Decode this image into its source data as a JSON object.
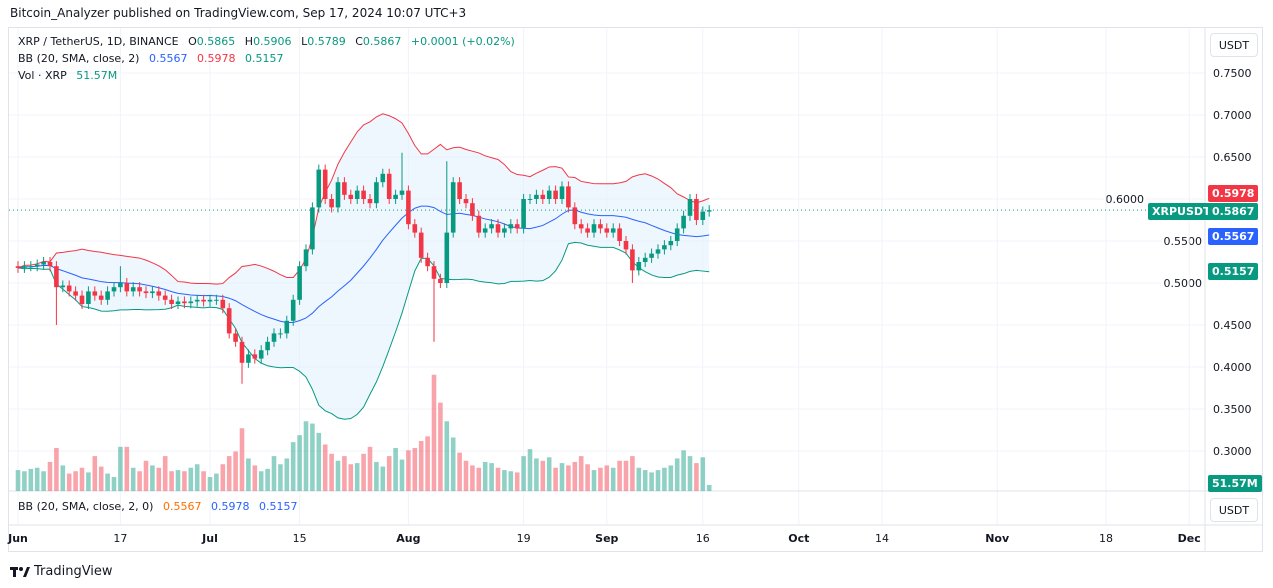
{
  "header": {
    "published": "Bitcoin_Analyzer published on TradingView.com, Sep 17, 2024 10:07 UTC+3"
  },
  "legend": {
    "symbol": "XRP / TetherUS, 1D, BINANCE",
    "o_label": "O",
    "o": "0.5865",
    "h_label": "H",
    "h": "0.5906",
    "l_label": "L",
    "l": "0.5789",
    "c_label": "C",
    "c": "0.5867",
    "change": "+0.0001 (+0.02%)",
    "bb": "BB (20, SMA, close, 2)",
    "bb_basis": "0.5567",
    "bb_upper": "0.5978",
    "bb_lower": "0.5157",
    "vol": "Vol · XRP",
    "vol_value": "51.57M"
  },
  "lower_pane": {
    "label": "BB (20, SMA, close, 2, 0)",
    "v1": "0.5567",
    "v2": "0.5978",
    "v3": "0.5157",
    "unit": "USDT"
  },
  "price_axis": {
    "unit": "USDT",
    "ticks": [
      "0.7500",
      "0.7000",
      "0.6500",
      "0.6000",
      "0.5500",
      "0.5000",
      "0.4500",
      "0.4000",
      "0.3500",
      "0.3000"
    ],
    "tags": {
      "symbol": "XRPUSDT",
      "upper": "0.5978",
      "last": "0.5867",
      "basis": "0.5567",
      "lower": "0.5157",
      "volume": "51.57M"
    }
  },
  "time_axis": {
    "labels": [
      "Jun",
      "17",
      "Jul",
      "15",
      "Aug",
      "19",
      "Sep",
      "16",
      "Oct",
      "14",
      "Nov",
      "18",
      "Dec"
    ]
  },
  "colors": {
    "up": "#089981",
    "down": "#f23645",
    "basis": "#2962ff",
    "upper": "#f23645",
    "lower": "#089981",
    "band_fill": "#e3f2fd"
  },
  "chart_data": {
    "type": "candlestick",
    "title": "XRP / TetherUS, 1D, BINANCE",
    "start_date": "2024-06-01",
    "end_date": "2024-09-17",
    "ylim": [
      0.28,
      0.78
    ],
    "grid": true,
    "closes": [
      0.518,
      0.52,
      0.52,
      0.522,
      0.525,
      0.52,
      0.495,
      0.497,
      0.49,
      0.485,
      0.475,
      0.49,
      0.485,
      0.48,
      0.49,
      0.495,
      0.5,
      0.49,
      0.495,
      0.49,
      0.488,
      0.49,
      0.485,
      0.48,
      0.475,
      0.478,
      0.476,
      0.478,
      0.48,
      0.478,
      0.48,
      0.48,
      0.47,
      0.44,
      0.43,
      0.405,
      0.415,
      0.41,
      0.42,
      0.43,
      0.44,
      0.44,
      0.455,
      0.48,
      0.52,
      0.54,
      0.59,
      0.635,
      0.6,
      0.59,
      0.62,
      0.605,
      0.6,
      0.61,
      0.6,
      0.595,
      0.62,
      0.63,
      0.6,
      0.605,
      0.61,
      0.57,
      0.56,
      0.53,
      0.52,
      0.505,
      0.5,
      0.56,
      0.62,
      0.6,
      0.595,
      0.58,
      0.56,
      0.565,
      0.57,
      0.56,
      0.565,
      0.57,
      0.565,
      0.6,
      0.6,
      0.605,
      0.6,
      0.61,
      0.6,
      0.615,
      0.59,
      0.57,
      0.565,
      0.56,
      0.57,
      0.565,
      0.56,
      0.565,
      0.55,
      0.54,
      0.515,
      0.525,
      0.53,
      0.535,
      0.54,
      0.545,
      0.55,
      0.565,
      0.58,
      0.6,
      0.575,
      0.585,
      0.5867
    ],
    "wick_extremes": [
      {
        "date": "2024-06-07",
        "low": 0.45
      },
      {
        "date": "2024-06-17",
        "high": 0.52
      },
      {
        "date": "2024-07-06",
        "low": 0.38
      },
      {
        "date": "2024-07-31",
        "high": 0.655
      },
      {
        "date": "2024-08-05",
        "low": 0.43
      },
      {
        "date": "2024-08-07",
        "high": 0.645
      },
      {
        "date": "2024-09-05",
        "low": 0.5
      }
    ],
    "volume_millions": [
      180,
      170,
      190,
      200,
      170,
      250,
      370,
      220,
      150,
      170,
      200,
      160,
      300,
      210,
      150,
      120,
      380,
      380,
      200,
      170,
      260,
      220,
      200,
      300,
      170,
      180,
      170,
      200,
      230,
      170,
      120,
      150,
      230,
      300,
      340,
      540,
      280,
      220,
      170,
      190,
      300,
      230,
      280,
      420,
      480,
      600,
      580,
      500,
      400,
      320,
      260,
      300,
      230,
      240,
      320,
      380,
      250,
      210,
      300,
      370,
      270,
      350,
      370,
      430,
      470,
      1000,
      760,
      600,
      460,
      330,
      260,
      220,
      200,
      250,
      240,
      200,
      180,
      170,
      160,
      300,
      360,
      280,
      260,
      290,
      200,
      240,
      220,
      250,
      300,
      230,
      180,
      200,
      220,
      200,
      260,
      260,
      300,
      200,
      180,
      160,
      180,
      200,
      220,
      280,
      350,
      300,
      240,
      290,
      51.57
    ]
  }
}
